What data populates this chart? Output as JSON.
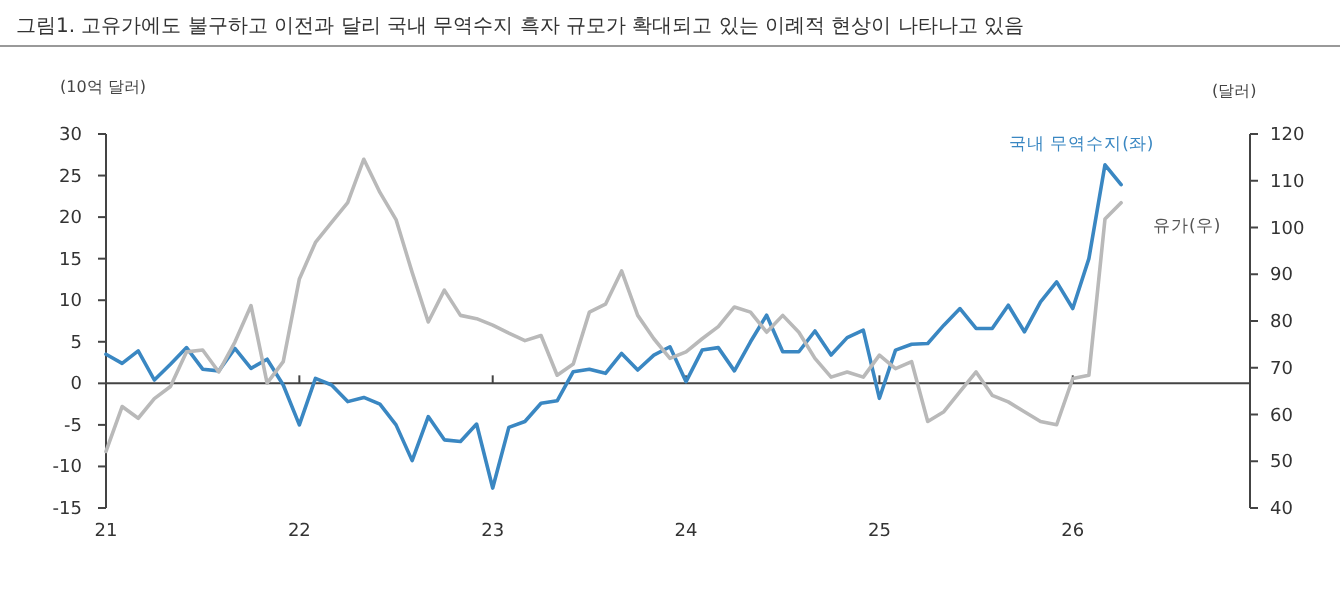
{
  "chart_data": {
    "type": "line",
    "title": "그림1.  고유가에도 불구하고 이전과 달리 국내 무역수지 흑자 규모가 확대되고 있는 이례적 현상이 나타나고 있음",
    "ylabel": "(10억 달러)",
    "y2label": "(달러)",
    "x": [
      "2021-01",
      "2021-02",
      "2021-03",
      "2021-04",
      "2021-05",
      "2021-06",
      "2021-07",
      "2021-08",
      "2021-09",
      "2021-10",
      "2021-11",
      "2021-12",
      "2022-01",
      "2022-02",
      "2022-03",
      "2022-04",
      "2022-05",
      "2022-06",
      "2022-07",
      "2022-08",
      "2022-09",
      "2022-10",
      "2022-11",
      "2022-12",
      "2023-01",
      "2023-02",
      "2023-03",
      "2023-04",
      "2023-05",
      "2023-06",
      "2023-07",
      "2023-08",
      "2023-09",
      "2023-10",
      "2023-11",
      "2023-12",
      "2024-01",
      "2024-02",
      "2024-03",
      "2024-04",
      "2024-05",
      "2024-06",
      "2024-07",
      "2024-08",
      "2024-09",
      "2024-10",
      "2024-11",
      "2024-12",
      "2025-01",
      "2025-02",
      "2025-03",
      "2025-04",
      "2025-05",
      "2025-06",
      "2025-07",
      "2025-08",
      "2025-09",
      "2025-10",
      "2025-11",
      "2025-12",
      "2026-01",
      "2026-02",
      "2026-03",
      "2026-04"
    ],
    "series": [
      {
        "name": "국내 무역수지(좌)",
        "color": "#3a87c2",
        "values": [
          3.5,
          2.4,
          3.9,
          0.4,
          2.3,
          4.3,
          1.7,
          1.5,
          4.2,
          1.8,
          2.9,
          -0.2,
          -5.0,
          0.6,
          -0.2,
          -2.2,
          -1.7,
          -2.5,
          -5.0,
          -9.3,
          -4.0,
          -6.8,
          -7.0,
          -4.9,
          -12.6,
          -5.3,
          -4.6,
          -2.4,
          -2.1,
          1.4,
          1.7,
          1.2,
          3.6,
          1.6,
          3.4,
          4.4,
          0.2,
          4.0,
          4.3,
          1.5,
          5.0,
          8.2,
          3.8,
          3.8,
          6.3,
          3.4,
          5.5,
          6.4,
          -1.8,
          4.0,
          4.7,
          4.8,
          7.0,
          9.0,
          6.6,
          6.6,
          9.4,
          6.2,
          9.8,
          12.2,
          9.0,
          15.0,
          26.3,
          23.9
        ]
      },
      {
        "name": "유가(우)",
        "color": "#b9b9b9",
        "axis": "y2",
        "values": [
          52.1,
          61.7,
          59.2,
          63.4,
          66.0,
          73.4,
          73.8,
          69.1,
          75.5,
          83.3,
          66.7,
          71.3,
          89.0,
          96.8,
          101.1,
          105.3,
          114.6,
          107.5,
          101.7,
          90.4,
          79.8,
          86.6,
          81.2,
          80.5,
          79.1,
          77.4,
          75.8,
          76.9,
          68.4,
          70.8,
          81.9,
          83.6,
          90.7,
          81.2,
          76.2,
          72.0,
          73.4,
          76.2,
          78.8,
          83.0,
          81.9,
          77.6,
          81.2,
          77.6,
          72.0,
          68.0,
          69.1,
          68.0,
          72.7,
          69.8,
          71.3,
          58.5,
          60.6,
          64.9,
          69.1,
          64.1,
          62.7,
          60.6,
          58.5,
          57.8,
          67.7,
          68.4,
          101.8,
          105.3
        ]
      }
    ],
    "xlim": [
      "2021-01",
      "2026-12"
    ],
    "xticks": [
      {
        "value": "2021-01",
        "label": "21"
      },
      {
        "value": "2022-01",
        "label": "22"
      },
      {
        "value": "2023-01",
        "label": "23"
      },
      {
        "value": "2024-01",
        "label": "24"
      },
      {
        "value": "2025-01",
        "label": "25"
      },
      {
        "value": "2026-01",
        "label": "26"
      }
    ],
    "ylim": [
      -15,
      30
    ],
    "yticks": [
      -15,
      -10,
      -5,
      0,
      5,
      10,
      15,
      20,
      25,
      30
    ],
    "y2lim": [
      40,
      120
    ],
    "y2ticks": [
      40,
      50,
      60,
      70,
      80,
      90,
      100,
      110,
      120
    ],
    "marker": "none",
    "line_style": "solid"
  }
}
